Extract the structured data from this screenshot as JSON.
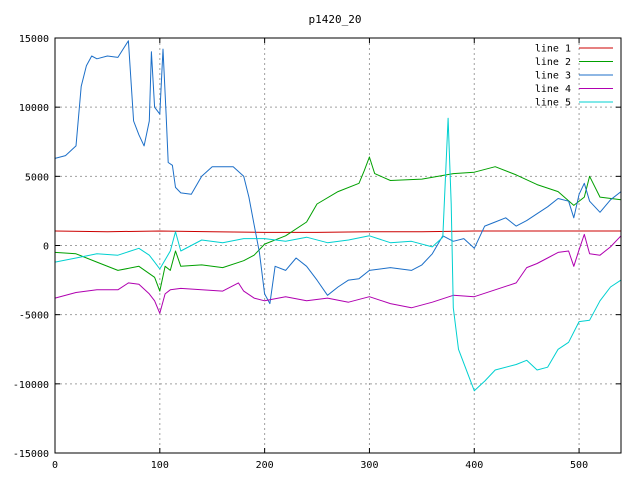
{
  "chart_data": {
    "type": "line",
    "title": "p1420_20",
    "xlim": [
      0,
      540
    ],
    "ylim": [
      -15000,
      15000
    ],
    "x_ticks": [
      "0",
      "100",
      "200",
      "300",
      "400",
      "500"
    ],
    "y_ticks": [
      "15000",
      "10000",
      "5000",
      "0",
      "-5000",
      "-10000",
      "-15000"
    ],
    "grid": true,
    "legend_position": "top-right",
    "series": [
      {
        "name": "line 1",
        "color": "#cc0000",
        "points": [
          [
            0,
            1050
          ],
          [
            50,
            1000
          ],
          [
            100,
            1050
          ],
          [
            150,
            1000
          ],
          [
            200,
            950
          ],
          [
            250,
            950
          ],
          [
            300,
            1000
          ],
          [
            350,
            1000
          ],
          [
            400,
            1050
          ],
          [
            450,
            1050
          ],
          [
            500,
            1050
          ],
          [
            540,
            1050
          ]
        ]
      },
      {
        "name": "line 2",
        "color": "#00a000",
        "points": [
          [
            0,
            -500
          ],
          [
            20,
            -600
          ],
          [
            40,
            -1200
          ],
          [
            60,
            -1800
          ],
          [
            80,
            -1500
          ],
          [
            95,
            -2300
          ],
          [
            100,
            -3300
          ],
          [
            105,
            -1500
          ],
          [
            110,
            -1800
          ],
          [
            115,
            -400
          ],
          [
            120,
            -1500
          ],
          [
            140,
            -1400
          ],
          [
            160,
            -1600
          ],
          [
            180,
            -1100
          ],
          [
            190,
            -700
          ],
          [
            200,
            100
          ],
          [
            220,
            700
          ],
          [
            240,
            1700
          ],
          [
            250,
            3000
          ],
          [
            270,
            3900
          ],
          [
            290,
            4500
          ],
          [
            295,
            5400
          ],
          [
            300,
            6400
          ],
          [
            305,
            5200
          ],
          [
            320,
            4700
          ],
          [
            350,
            4800
          ],
          [
            380,
            5200
          ],
          [
            400,
            5300
          ],
          [
            420,
            5700
          ],
          [
            440,
            5100
          ],
          [
            460,
            4400
          ],
          [
            480,
            3900
          ],
          [
            495,
            2900
          ],
          [
            505,
            3500
          ],
          [
            510,
            5000
          ],
          [
            520,
            3500
          ],
          [
            540,
            3300
          ]
        ]
      },
      {
        "name": "line 3",
        "color": "#1c6fc8",
        "points": [
          [
            0,
            6300
          ],
          [
            10,
            6500
          ],
          [
            20,
            7200
          ],
          [
            25,
            11500
          ],
          [
            30,
            13000
          ],
          [
            35,
            13700
          ],
          [
            40,
            13500
          ],
          [
            50,
            13700
          ],
          [
            60,
            13600
          ],
          [
            65,
            14200
          ],
          [
            70,
            14800
          ],
          [
            75,
            9000
          ],
          [
            80,
            8000
          ],
          [
            85,
            7200
          ],
          [
            90,
            9000
          ],
          [
            92,
            14000
          ],
          [
            95,
            10000
          ],
          [
            100,
            9500
          ],
          [
            103,
            14200
          ],
          [
            106,
            9500
          ],
          [
            108,
            6000
          ],
          [
            112,
            5800
          ],
          [
            115,
            4200
          ],
          [
            120,
            3800
          ],
          [
            130,
            3700
          ],
          [
            140,
            5000
          ],
          [
            150,
            5700
          ],
          [
            170,
            5700
          ],
          [
            180,
            5000
          ],
          [
            185,
            3500
          ],
          [
            190,
            1500
          ],
          [
            195,
            -500
          ],
          [
            200,
            -3500
          ],
          [
            205,
            -4200
          ],
          [
            210,
            -1500
          ],
          [
            220,
            -1800
          ],
          [
            230,
            -900
          ],
          [
            240,
            -1500
          ],
          [
            250,
            -2500
          ],
          [
            260,
            -3600
          ],
          [
            270,
            -3000
          ],
          [
            280,
            -2500
          ],
          [
            290,
            -2400
          ],
          [
            300,
            -1800
          ],
          [
            320,
            -1600
          ],
          [
            340,
            -1800
          ],
          [
            350,
            -1400
          ],
          [
            360,
            -600
          ],
          [
            370,
            700
          ],
          [
            380,
            300
          ],
          [
            390,
            500
          ],
          [
            400,
            -200
          ],
          [
            410,
            1400
          ],
          [
            420,
            1700
          ],
          [
            430,
            2000
          ],
          [
            440,
            1400
          ],
          [
            450,
            1800
          ],
          [
            460,
            2300
          ],
          [
            470,
            2800
          ],
          [
            480,
            3400
          ],
          [
            490,
            3200
          ],
          [
            495,
            2000
          ],
          [
            500,
            3700
          ],
          [
            505,
            4500
          ],
          [
            510,
            3200
          ],
          [
            520,
            2400
          ],
          [
            530,
            3300
          ],
          [
            540,
            3900
          ]
        ]
      },
      {
        "name": "line 4",
        "color": "#b000b0",
        "points": [
          [
            0,
            -3800
          ],
          [
            20,
            -3400
          ],
          [
            40,
            -3200
          ],
          [
            60,
            -3200
          ],
          [
            70,
            -2700
          ],
          [
            80,
            -2800
          ],
          [
            90,
            -3500
          ],
          [
            95,
            -4000
          ],
          [
            100,
            -4900
          ],
          [
            105,
            -3500
          ],
          [
            110,
            -3200
          ],
          [
            120,
            -3100
          ],
          [
            140,
            -3200
          ],
          [
            160,
            -3300
          ],
          [
            175,
            -2700
          ],
          [
            180,
            -3300
          ],
          [
            190,
            -3800
          ],
          [
            200,
            -4000
          ],
          [
            220,
            -3700
          ],
          [
            240,
            -4000
          ],
          [
            260,
            -3800
          ],
          [
            280,
            -4100
          ],
          [
            300,
            -3700
          ],
          [
            320,
            -4200
          ],
          [
            340,
            -4500
          ],
          [
            360,
            -4100
          ],
          [
            380,
            -3600
          ],
          [
            400,
            -3700
          ],
          [
            420,
            -3200
          ],
          [
            440,
            -2700
          ],
          [
            450,
            -1600
          ],
          [
            460,
            -1300
          ],
          [
            470,
            -900
          ],
          [
            480,
            -500
          ],
          [
            490,
            -400
          ],
          [
            495,
            -1500
          ],
          [
            500,
            -300
          ],
          [
            505,
            800
          ],
          [
            510,
            -600
          ],
          [
            520,
            -700
          ],
          [
            530,
            -100
          ],
          [
            540,
            700
          ]
        ]
      },
      {
        "name": "line 5",
        "color": "#00d0d0",
        "points": [
          [
            0,
            -1200
          ],
          [
            20,
            -900
          ],
          [
            40,
            -600
          ],
          [
            60,
            -700
          ],
          [
            80,
            -200
          ],
          [
            90,
            -700
          ],
          [
            95,
            -1200
          ],
          [
            100,
            -1700
          ],
          [
            110,
            -400
          ],
          [
            115,
            1000
          ],
          [
            120,
            -400
          ],
          [
            140,
            400
          ],
          [
            160,
            200
          ],
          [
            180,
            500
          ],
          [
            200,
            500
          ],
          [
            220,
            300
          ],
          [
            240,
            600
          ],
          [
            260,
            200
          ],
          [
            280,
            400
          ],
          [
            300,
            700
          ],
          [
            320,
            200
          ],
          [
            340,
            300
          ],
          [
            360,
            -100
          ],
          [
            370,
            600
          ],
          [
            375,
            9200
          ],
          [
            378,
            3000
          ],
          [
            380,
            -4500
          ],
          [
            385,
            -7500
          ],
          [
            395,
            -9500
          ],
          [
            400,
            -10500
          ],
          [
            410,
            -9800
          ],
          [
            420,
            -9000
          ],
          [
            440,
            -8600
          ],
          [
            450,
            -8300
          ],
          [
            460,
            -9000
          ],
          [
            470,
            -8800
          ],
          [
            480,
            -7500
          ],
          [
            490,
            -7000
          ],
          [
            500,
            -5500
          ],
          [
            510,
            -5400
          ],
          [
            520,
            -4000
          ],
          [
            530,
            -3000
          ],
          [
            540,
            -2500
          ]
        ]
      }
    ]
  }
}
